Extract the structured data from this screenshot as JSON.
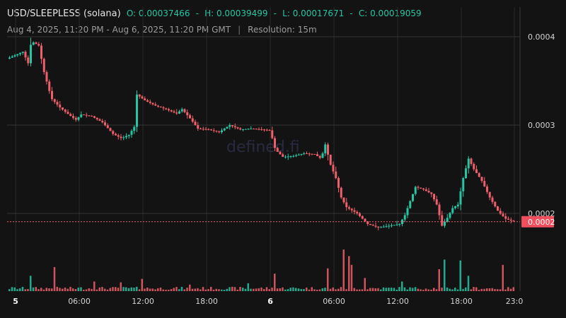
{
  "header": {
    "title": "USD/SLEEPLESS (solana)",
    "open_label": "O:",
    "open": "0.00037466",
    "high_label": "H:",
    "high": "0.00039499",
    "low_label": "L:",
    "low": "0.00017671",
    "close_label": "C:",
    "close": "0.00019059",
    "date_range": "Aug 4, 2025, 11:20 PM - Aug 6, 2025, 11:20 PM GMT",
    "separator": "|",
    "resolution": "Resolution: 15m"
  },
  "watermark": "defined.fi",
  "chart_data": {
    "type": "candlestick",
    "ylim": [
      0.0001,
      0.00045
    ],
    "y_ticks": [
      {
        "value": 0.0004,
        "label": "0.0004"
      },
      {
        "value": 0.0003,
        "label": "0.0003"
      },
      {
        "value": 0.0002,
        "label": "0.0002"
      }
    ],
    "x_ticks": [
      {
        "hour": 0.67,
        "label": "5",
        "bold": true
      },
      {
        "hour": 6.67,
        "label": "06:00",
        "bold": false
      },
      {
        "hour": 12.67,
        "label": "12:00",
        "bold": false
      },
      {
        "hour": 18.67,
        "label": "18:00",
        "bold": false
      },
      {
        "hour": 24.67,
        "label": "6",
        "bold": true
      },
      {
        "hour": 30.67,
        "label": "06:00",
        "bold": false
      },
      {
        "hour": 36.67,
        "label": "12:00",
        "bold": false
      },
      {
        "hour": 42.67,
        "label": "18:00",
        "bold": false
      },
      {
        "hour": 47.67,
        "label": "23:0",
        "bold": false
      }
    ],
    "last_price": {
      "value": 0.00019059,
      "label": "0.0002"
    },
    "up_color": "#26c6a4",
    "down_color": "#ef5f6a",
    "close_path": [
      [
        0,
        0.000375
      ],
      [
        1.5,
        0.000383
      ],
      [
        2.0,
        0.00037
      ],
      [
        2.3,
        0.000395
      ],
      [
        3.0,
        0.00039
      ],
      [
        3.5,
        0.00036
      ],
      [
        4.2,
        0.00033
      ],
      [
        5.0,
        0.00032
      ],
      [
        5.8,
        0.000312
      ],
      [
        6.5,
        0.000306
      ],
      [
        7.0,
        0.000312
      ],
      [
        8.0,
        0.00031
      ],
      [
        9.0,
        0.000303
      ],
      [
        10.0,
        0.00029
      ],
      [
        10.8,
        0.000285
      ],
      [
        11.5,
        0.000289
      ],
      [
        12.0,
        0.000298
      ],
      [
        12.2,
        0.000335
      ],
      [
        13.0,
        0.000328
      ],
      [
        14.0,
        0.000322
      ],
      [
        15.0,
        0.000318
      ],
      [
        16.0,
        0.000313
      ],
      [
        16.5,
        0.000318
      ],
      [
        17.3,
        0.000307
      ],
      [
        18.0,
        0.000296
      ],
      [
        19.0,
        0.000295
      ],
      [
        20.0,
        0.000292
      ],
      [
        21.0,
        0.0003
      ],
      [
        22.0,
        0.000295
      ],
      [
        23.0,
        0.000296
      ],
      [
        24.0,
        0.000295
      ],
      [
        24.8,
        0.000294
      ],
      [
        25.3,
        0.000272
      ],
      [
        26.0,
        0.000264
      ],
      [
        27.0,
        0.000265
      ],
      [
        28.0,
        0.000268
      ],
      [
        29.0,
        0.000267
      ],
      [
        29.6,
        0.000262
      ],
      [
        30.0,
        0.000278
      ],
      [
        30.5,
        0.000255
      ],
      [
        31.0,
        0.00024
      ],
      [
        31.5,
        0.000218
      ],
      [
        32.0,
        0.000207
      ],
      [
        33.0,
        0.0002
      ],
      [
        34.0,
        0.000188
      ],
      [
        35.0,
        0.000184
      ],
      [
        36.0,
        0.000186
      ],
      [
        37.0,
        0.000188
      ],
      [
        37.5,
        0.000198
      ],
      [
        38.0,
        0.000214
      ],
      [
        38.5,
        0.00023
      ],
      [
        39.3,
        0.000227
      ],
      [
        40.0,
        0.000222
      ],
      [
        40.5,
        0.00021
      ],
      [
        41.0,
        0.000186
      ],
      [
        41.5,
        0.000195
      ],
      [
        42.0,
        0.000206
      ],
      [
        42.5,
        0.00021
      ],
      [
        43.0,
        0.00024
      ],
      [
        43.5,
        0.000262
      ],
      [
        44.0,
        0.00025
      ],
      [
        44.7,
        0.000238
      ],
      [
        45.5,
        0.000218
      ],
      [
        46.3,
        0.000202
      ],
      [
        47.0,
        0.000194
      ],
      [
        47.7,
        0.000191
      ]
    ],
    "volume_spikes": [
      [
        2.0,
        0.35
      ],
      [
        4.2,
        0.55
      ],
      [
        8.0,
        0.22
      ],
      [
        10.5,
        0.2
      ],
      [
        12.5,
        0.28
      ],
      [
        17.0,
        0.15
      ],
      [
        22.5,
        0.18
      ],
      [
        25.0,
        0.4
      ],
      [
        30.0,
        0.52
      ],
      [
        31.5,
        0.95
      ],
      [
        32.0,
        0.8
      ],
      [
        32.3,
        0.6
      ],
      [
        33.5,
        0.3
      ],
      [
        37.0,
        0.22
      ],
      [
        40.5,
        0.5
      ],
      [
        41.0,
        0.72
      ],
      [
        42.5,
        0.7
      ],
      [
        43.2,
        0.35
      ],
      [
        46.5,
        0.6
      ]
    ]
  }
}
